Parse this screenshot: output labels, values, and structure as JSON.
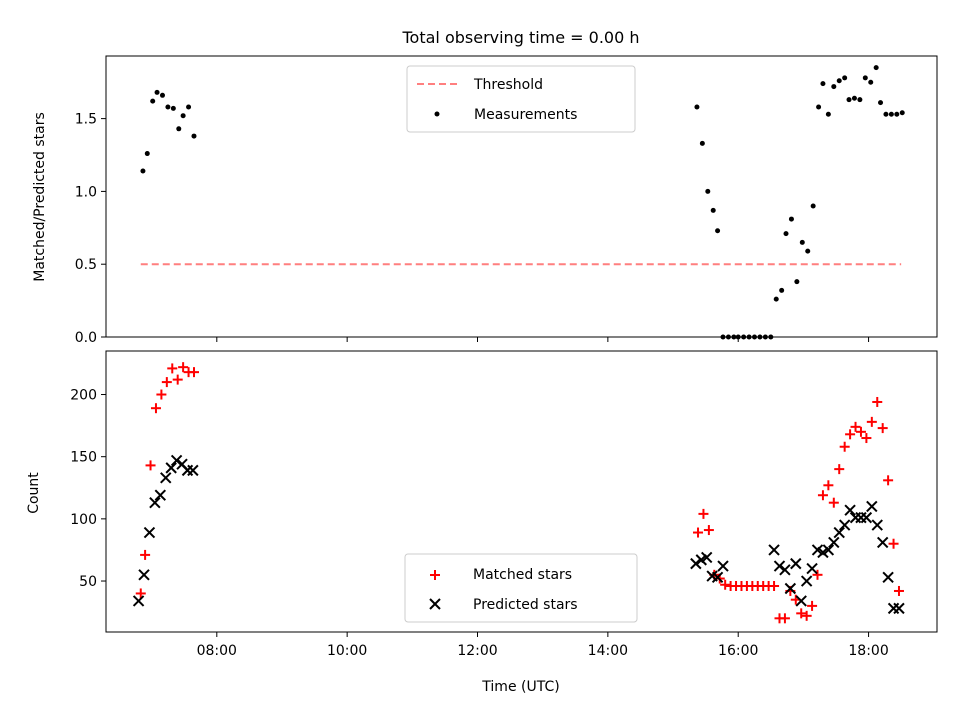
{
  "chart_data": [
    {
      "type": "scatter",
      "title": "Total observing time = 0.00 h",
      "ylabel": "Matched/Predicted stars",
      "xlabel": "",
      "xlim": [
        "06:18",
        "19:03"
      ],
      "ylim": [
        0,
        1.93
      ],
      "yticks": [
        0.0,
        0.5,
        1.0,
        1.5
      ],
      "ytick_labels": [
        "0.0",
        "0.5",
        "1.0",
        "1.5"
      ],
      "xticks": [
        "08:00",
        "10:00",
        "12:00",
        "14:00",
        "16:00",
        "18:00"
      ],
      "legend_position": "upper-center",
      "series": [
        {
          "name": "Threshold",
          "style": "dashed-line",
          "color": "#ff7f7f",
          "x": [
            "06:50",
            "18:30"
          ],
          "y": [
            0.5,
            0.5
          ]
        },
        {
          "name": "Measurements",
          "style": "dot",
          "color": "#000000",
          "x": [
            "06:52",
            "06:56",
            "07:01",
            "07:05",
            "07:10",
            "07:15",
            "07:20",
            "07:25",
            "07:29",
            "07:34",
            "07:39",
            "15:22",
            "15:27",
            "15:32",
            "15:37",
            "15:41",
            "15:46",
            "15:51",
            "15:56",
            "16:00",
            "16:05",
            "16:10",
            "16:15",
            "16:20",
            "16:25",
            "16:30",
            "16:35",
            "16:40",
            "16:44",
            "16:49",
            "16:54",
            "16:59",
            "17:04",
            "17:09",
            "17:14",
            "17:18",
            "17:23",
            "17:28",
            "17:33",
            "17:38",
            "17:42",
            "17:47",
            "17:52",
            "17:57",
            "18:02",
            "18:07",
            "18:11",
            "18:16",
            "18:21",
            "18:26",
            "18:31"
          ],
          "y": [
            1.14,
            1.26,
            1.62,
            1.68,
            1.66,
            1.58,
            1.57,
            1.43,
            1.52,
            1.58,
            1.38,
            1.58,
            1.33,
            1.0,
            0.87,
            0.73,
            0.0,
            0.0,
            0.0,
            0.0,
            0.0,
            0.0,
            0.0,
            0.0,
            0.0,
            0.0,
            0.26,
            0.32,
            0.71,
            0.81,
            0.38,
            0.65,
            0.59,
            0.9,
            1.58,
            1.74,
            1.53,
            1.72,
            1.76,
            1.78,
            1.63,
            1.64,
            1.63,
            1.78,
            1.75,
            1.85,
            1.61,
            1.53,
            1.53,
            1.53,
            1.54
          ]
        }
      ]
    },
    {
      "type": "scatter",
      "title": "",
      "ylabel": "Count",
      "xlabel": "Time (UTC)",
      "xlim": [
        "06:18",
        "19:03"
      ],
      "ylim": [
        9,
        235
      ],
      "yticks": [
        50,
        100,
        150,
        200
      ],
      "ytick_labels": [
        "50",
        "100",
        "150",
        "200"
      ],
      "xticks": [
        "08:00",
        "10:00",
        "12:00",
        "14:00",
        "16:00",
        "18:00"
      ],
      "legend_position": "lower-center",
      "series": [
        {
          "name": "Matched stars",
          "marker": "plus",
          "color": "#ff0000",
          "x": [
            "06:50",
            "06:54",
            "06:59",
            "07:04",
            "07:09",
            "07:14",
            "07:19",
            "07:24",
            "07:29",
            "07:34",
            "07:39",
            "15:23",
            "15:28",
            "15:33",
            "15:38",
            "15:43",
            "15:48",
            "15:53",
            "15:58",
            "16:03",
            "16:08",
            "16:13",
            "16:18",
            "16:23",
            "16:28",
            "16:33",
            "16:38",
            "16:43",
            "16:48",
            "16:53",
            "16:58",
            "17:03",
            "17:08",
            "17:13",
            "17:18",
            "17:23",
            "17:28",
            "17:33",
            "17:38",
            "17:43",
            "17:48",
            "17:53",
            "17:58",
            "18:03",
            "18:08",
            "18:13",
            "18:18",
            "18:23",
            "18:28"
          ],
          "y": [
            40,
            71,
            143,
            189,
            200,
            210,
            221,
            212,
            222,
            218,
            218,
            89,
            104,
            91,
            55,
            52,
            47,
            46,
            46,
            46,
            46,
            46,
            46,
            46,
            46,
            46,
            20,
            20,
            42,
            35,
            24,
            22,
            30,
            55,
            119,
            127,
            113,
            140,
            158,
            168,
            174,
            170,
            165,
            178,
            194,
            173,
            131,
            80,
            42
          ]
        },
        {
          "name": "Predicted stars",
          "marker": "x",
          "color": "#000000",
          "x": [
            "06:48",
            "06:53",
            "06:58",
            "07:03",
            "07:08",
            "07:13",
            "07:18",
            "07:23",
            "07:28",
            "07:33",
            "07:38",
            "15:21",
            "15:26",
            "15:31",
            "15:36",
            "15:41",
            "15:46",
            "16:33",
            "16:38",
            "16:43",
            "16:48",
            "16:53",
            "16:58",
            "17:03",
            "17:08",
            "17:13",
            "17:18",
            "17:23",
            "17:28",
            "17:33",
            "17:38",
            "17:43",
            "17:48",
            "17:53",
            "17:58",
            "18:03",
            "18:08",
            "18:13",
            "18:18",
            "18:23",
            "18:28"
          ],
          "y": [
            34,
            55,
            89,
            113,
            119,
            133,
            141,
            147,
            144,
            139,
            139,
            64,
            67,
            69,
            54,
            53,
            62,
            75,
            62,
            59,
            44,
            64,
            34,
            50,
            60,
            75,
            73,
            75,
            81,
            89,
            95,
            107,
            101,
            101,
            101,
            110,
            95,
            81,
            53,
            28,
            28
          ]
        }
      ]
    }
  ]
}
